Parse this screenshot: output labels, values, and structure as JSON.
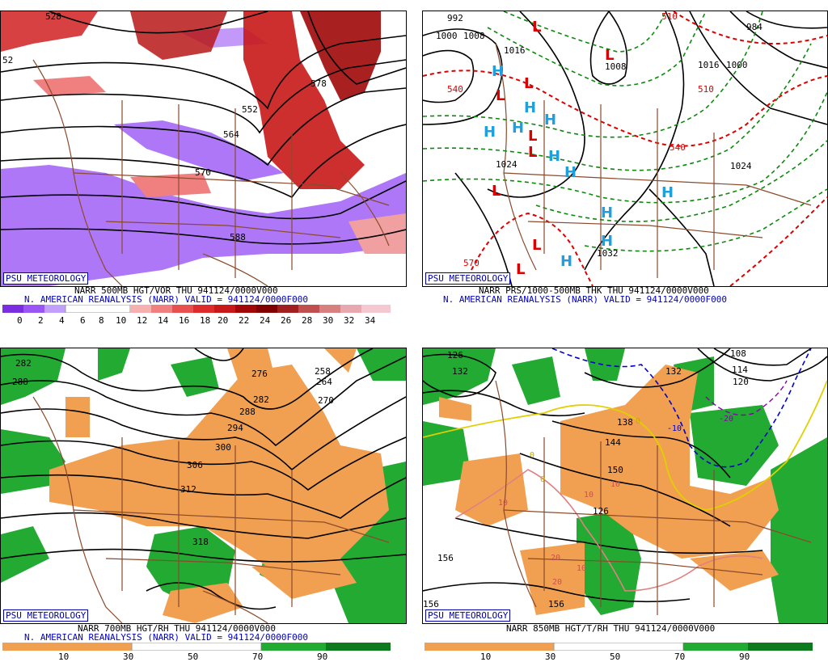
{
  "branding": "PSU METEOROLOGY",
  "panels": [
    {
      "caption1": "NARR 500MB HGT/VOR THU 941124/0000V000",
      "caption2": "N. AMERICAN REANALYSIS (NARR) VALID = 941124/0000F000",
      "colorbar_ticks": [
        "0",
        "2",
        "4",
        "6",
        "8",
        "10",
        "12",
        "14",
        "16",
        "18",
        "20",
        "22",
        "24",
        "26",
        "28",
        "30",
        "32",
        "34"
      ],
      "contour_labels": [
        "528",
        "552",
        "564",
        "570",
        "588",
        "52",
        "578"
      ]
    },
    {
      "caption1": "NARR PRS/1000-500MB THK THU 941124/0000V000",
      "caption2": "N. AMERICAN REANALYSIS (NARR) VALID = 941124/0000F000",
      "contour_labels": [
        "992",
        "1000",
        "1008",
        "1016",
        "1024",
        "1024",
        "1032",
        "1016",
        "1008",
        "984",
        "1000",
        "540",
        "570",
        "540",
        "510",
        "510"
      ],
      "high_symbol": "H",
      "low_symbol": "L"
    },
    {
      "caption1": "NARR 700MB HGT/RH THU 941124/0000V000",
      "caption2": "N. AMERICAN REANALYSIS (NARR) VALID = 941124/0000F000",
      "colorbar_ticks": [
        "10",
        "30",
        "50",
        "70",
        "90"
      ],
      "contour_labels": [
        "282",
        "288",
        "276",
        "258",
        "264",
        "270",
        "282",
        "288",
        "294",
        "300",
        "306",
        "312",
        "318"
      ]
    },
    {
      "caption1": "NARR 850MB HGT/T/RH THU 941124/0000V000",
      "colorbar_ticks": [
        "10",
        "30",
        "50",
        "70",
        "90"
      ],
      "contour_labels": [
        "126",
        "132",
        "132",
        "108",
        "114",
        "120",
        "138",
        "144",
        "150",
        "156",
        "156",
        "156",
        "126"
      ],
      "temp_labels": [
        "-10",
        "-20",
        "0",
        "0",
        "0",
        "10",
        "10",
        "10",
        "10",
        "20",
        "20"
      ]
    }
  ],
  "colors": {
    "vort_low": "#8a3cf0",
    "vort_high": "#cc0000",
    "rh_dry": "#f0a050",
    "rh_moist": "#22aa33",
    "map_lines": "#8b4a2b",
    "thickness": "#cc0000",
    "high": "#1ea0e0",
    "low": "#dd0000"
  }
}
